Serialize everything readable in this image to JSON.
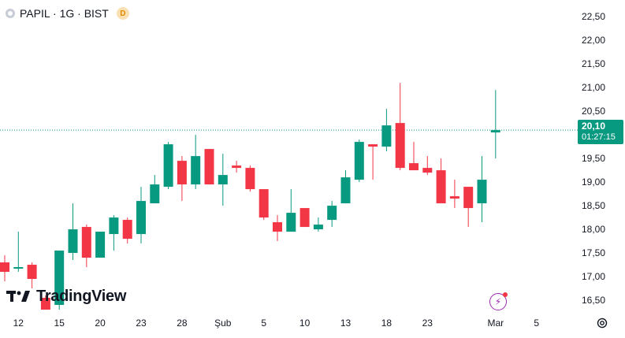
{
  "header": {
    "symbol_line": "PAPIL · 1G · BIST",
    "badge": "D"
  },
  "price_tag": {
    "price": "20,10",
    "countdown": "01:27:15"
  },
  "logo_text": "TradingView",
  "colors": {
    "up": "#089981",
    "down": "#f23645",
    "price_line": "#089981",
    "text": "#131722"
  },
  "icons": [
    "status-dot-icon",
    "bolt-icon",
    "settings-gear-icon",
    "tradingview-logo-icon"
  ],
  "chart_data": {
    "type": "candlestick",
    "ylim": [
      16.3,
      22.62
    ],
    "y_ticks": [
      "22,50",
      "22,00",
      "21,50",
      "21,00",
      "20,50",
      "20,00",
      "19,50",
      "19,00",
      "18,50",
      "18,00",
      "17,50",
      "17,00",
      "16,50"
    ],
    "y_tick_values": [
      22.5,
      22.0,
      21.5,
      21.0,
      20.5,
      20.0,
      19.5,
      19.0,
      18.5,
      18.0,
      17.5,
      17.0,
      16.5
    ],
    "x_ticks": [
      {
        "label": "12",
        "index": 1
      },
      {
        "label": "15",
        "index": 4
      },
      {
        "label": "20",
        "index": 7
      },
      {
        "label": "23",
        "index": 10
      },
      {
        "label": "28",
        "index": 13
      },
      {
        "label": "Şub",
        "index": 16
      },
      {
        "label": "5",
        "index": 19
      },
      {
        "label": "10",
        "index": 22
      },
      {
        "label": "13",
        "index": 25
      },
      {
        "label": "18",
        "index": 28
      },
      {
        "label": "23",
        "index": 31
      },
      {
        "label": "Mar",
        "index": 36
      },
      {
        "label": "5",
        "index": 39
      }
    ],
    "last_price": 20.1,
    "candles": [
      {
        "o": 17.3,
        "h": 17.45,
        "l": 16.9,
        "c": 17.1
      },
      {
        "o": 17.2,
        "h": 17.95,
        "l": 17.1,
        "c": 17.2
      },
      {
        "o": 17.25,
        "h": 17.3,
        "l": 16.75,
        "c": 16.95
      },
      {
        "o": 16.55,
        "h": 16.6,
        "l": 16.3,
        "c": 16.3
      },
      {
        "o": 16.4,
        "h": 17.55,
        "l": 16.3,
        "c": 17.55
      },
      {
        "o": 17.5,
        "h": 18.55,
        "l": 17.35,
        "c": 18.0
      },
      {
        "o": 18.05,
        "h": 18.1,
        "l": 17.2,
        "c": 17.4
      },
      {
        "o": 17.4,
        "h": 17.95,
        "l": 17.4,
        "c": 17.95
      },
      {
        "o": 17.9,
        "h": 18.3,
        "l": 17.55,
        "c": 18.25
      },
      {
        "o": 18.2,
        "h": 18.25,
        "l": 17.7,
        "c": 17.8
      },
      {
        "o": 17.9,
        "h": 18.9,
        "l": 17.7,
        "c": 18.6
      },
      {
        "o": 18.55,
        "h": 19.15,
        "l": 18.55,
        "c": 18.95
      },
      {
        "o": 18.9,
        "h": 19.85,
        "l": 18.85,
        "c": 19.8
      },
      {
        "o": 19.45,
        "h": 19.55,
        "l": 18.6,
        "c": 18.95
      },
      {
        "o": 18.95,
        "h": 20.0,
        "l": 18.85,
        "c": 19.55
      },
      {
        "o": 19.7,
        "h": 19.7,
        "l": 18.95,
        "c": 18.95
      },
      {
        "o": 18.95,
        "h": 19.6,
        "l": 18.5,
        "c": 19.15
      },
      {
        "o": 19.35,
        "h": 19.45,
        "l": 19.2,
        "c": 19.3
      },
      {
        "o": 19.3,
        "h": 19.35,
        "l": 18.8,
        "c": 18.85
      },
      {
        "o": 18.85,
        "h": 18.85,
        "l": 18.2,
        "c": 18.25
      },
      {
        "o": 18.15,
        "h": 18.3,
        "l": 17.75,
        "c": 17.95
      },
      {
        "o": 17.95,
        "h": 18.85,
        "l": 17.95,
        "c": 18.35
      },
      {
        "o": 18.45,
        "h": 18.45,
        "l": 18.05,
        "c": 18.05
      },
      {
        "o": 18.0,
        "h": 18.25,
        "l": 17.95,
        "c": 18.1
      },
      {
        "o": 18.2,
        "h": 18.6,
        "l": 18.05,
        "c": 18.5
      },
      {
        "o": 18.55,
        "h": 19.25,
        "l": 18.55,
        "c": 19.1
      },
      {
        "o": 19.05,
        "h": 19.9,
        "l": 19.0,
        "c": 19.85
      },
      {
        "o": 19.8,
        "h": 19.8,
        "l": 19.05,
        "c": 19.75
      },
      {
        "o": 19.75,
        "h": 20.55,
        "l": 19.65,
        "c": 20.2
      },
      {
        "o": 20.25,
        "h": 21.1,
        "l": 19.25,
        "c": 19.3
      },
      {
        "o": 19.4,
        "h": 19.85,
        "l": 19.25,
        "c": 19.25
      },
      {
        "o": 19.3,
        "h": 19.55,
        "l": 19.15,
        "c": 19.2
      },
      {
        "o": 19.25,
        "h": 19.5,
        "l": 18.55,
        "c": 18.55
      },
      {
        "o": 18.7,
        "h": 19.05,
        "l": 18.45,
        "c": 18.65
      },
      {
        "o": 18.9,
        "h": 18.9,
        "l": 18.05,
        "c": 18.45
      },
      {
        "o": 18.55,
        "h": 19.55,
        "l": 18.15,
        "c": 19.05
      },
      {
        "o": 20.05,
        "h": 20.95,
        "l": 19.5,
        "c": 20.1
      }
    ]
  }
}
